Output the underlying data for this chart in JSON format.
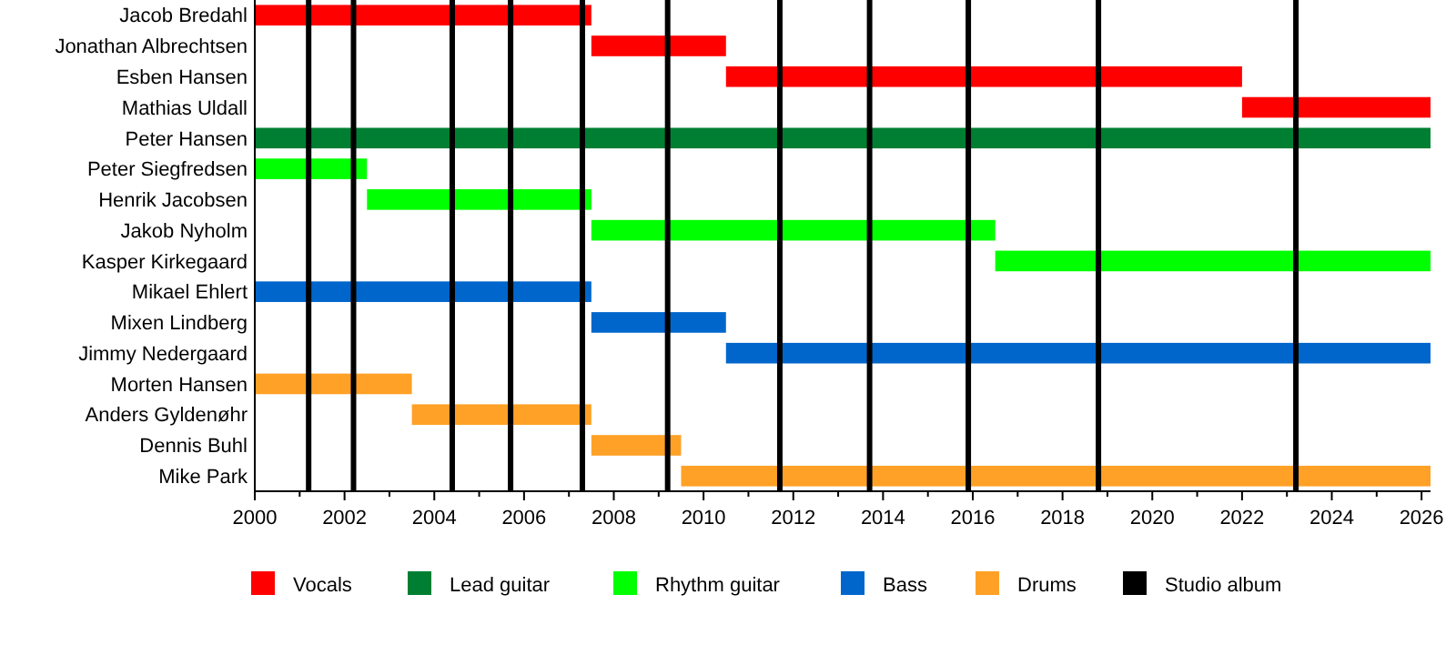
{
  "chart_data": {
    "type": "bar",
    "orientation": "horizontal",
    "categories": [
      "Jacob Bredahl",
      "Jonathan Albrechtsen",
      "Esben Hansen",
      "Mathias Uldall",
      "Peter Hansen",
      "Peter Siegfredsen",
      "Henrik Jacobsen",
      "Jakob Nyholm",
      "Kasper Kirkegaard",
      "Mikael Ehlert",
      "Mixen Lindberg",
      "Jimmy Nedergaard",
      "Morten Hansen",
      "Anders Gyldenøhr",
      "Dennis Buhl",
      "Mike Park"
    ],
    "series": [
      {
        "name": "Vocals",
        "color": "#ff0000",
        "base": [
          2000,
          2007.5,
          2010.5,
          2022,
          null,
          null,
          null,
          null,
          null,
          null,
          null,
          null,
          null,
          null,
          null,
          null
        ],
        "values": [
          7.5,
          3,
          11.5,
          4.2,
          null,
          null,
          null,
          null,
          null,
          null,
          null,
          null,
          null,
          null,
          null,
          null
        ]
      },
      {
        "name": "Lead guitar",
        "color": "#007f33",
        "base": [
          null,
          null,
          null,
          null,
          2000,
          null,
          null,
          null,
          null,
          null,
          null,
          null,
          null,
          null,
          null,
          null
        ],
        "values": [
          null,
          null,
          null,
          null,
          26.2,
          null,
          null,
          null,
          null,
          null,
          null,
          null,
          null,
          null,
          null,
          null
        ]
      },
      {
        "name": "Rhythm guitar",
        "color": "#00ff00",
        "base": [
          null,
          null,
          null,
          null,
          null,
          2000,
          2002.5,
          2007.5,
          2016.5,
          null,
          null,
          null,
          null,
          null,
          null,
          null
        ],
        "values": [
          null,
          null,
          null,
          null,
          null,
          2.5,
          5,
          9,
          9.7,
          null,
          null,
          null,
          null,
          null,
          null,
          null
        ]
      },
      {
        "name": "Bass",
        "color": "#0066cc",
        "base": [
          null,
          null,
          null,
          null,
          null,
          null,
          null,
          null,
          null,
          2000,
          2007.5,
          2010.5,
          null,
          null,
          null,
          null
        ],
        "values": [
          null,
          null,
          null,
          null,
          null,
          null,
          null,
          null,
          null,
          7.5,
          3,
          15.7,
          null,
          null,
          null,
          null
        ]
      },
      {
        "name": "Drums",
        "color": "#ffa126",
        "base": [
          null,
          null,
          null,
          null,
          null,
          null,
          null,
          null,
          null,
          null,
          null,
          null,
          2000,
          2003.5,
          2007.5,
          2009.5
        ],
        "values": [
          null,
          null,
          null,
          null,
          null,
          null,
          null,
          null,
          null,
          null,
          null,
          null,
          3.5,
          4,
          2,
          16.7
        ]
      }
    ],
    "xlim": [
      2000,
      2026.2
    ],
    "xticks": [
      2000,
      {
        "value": 2001,
        "label": null
      },
      2002,
      {
        "value": 2003,
        "label": null
      },
      2004,
      {
        "value": 2005,
        "label": null
      },
      2006,
      {
        "value": 2007,
        "label": null
      },
      2008,
      {
        "value": 2009,
        "label": null
      },
      2010,
      {
        "value": 2011,
        "label": null
      },
      2012,
      {
        "value": 2013,
        "label": null
      },
      2014,
      {
        "value": 2015,
        "label": null
      },
      2016,
      {
        "value": 2017,
        "label": null
      },
      2018,
      {
        "value": 2019,
        "label": null
      },
      2020,
      {
        "value": 2021,
        "label": null
      },
      2022,
      {
        "value": 2023,
        "label": null
      },
      2024,
      {
        "value": 2025,
        "label": null
      },
      2026
    ],
    "ref_lines": [
      {
        "axis": "x",
        "value": 2001.2,
        "label": "Studio album",
        "color": "#000000"
      },
      {
        "axis": "x",
        "value": 2002.2,
        "color": "#000000"
      },
      {
        "axis": "x",
        "value": 2004.4,
        "color": "#000000"
      },
      {
        "axis": "x",
        "value": 2005.7,
        "color": "#000000"
      },
      {
        "axis": "x",
        "value": 2007.3,
        "color": "#000000"
      },
      {
        "axis": "x",
        "value": 2009.2,
        "color": "#000000"
      },
      {
        "axis": "x",
        "value": 2011.7,
        "color": "#000000"
      },
      {
        "axis": "x",
        "value": 2013.7,
        "color": "#000000"
      },
      {
        "axis": "x",
        "value": 2015.9,
        "color": "#000000"
      },
      {
        "axis": "x",
        "value": 2018.8,
        "color": "#000000"
      },
      {
        "axis": "x",
        "value": 2023.2,
        "color": "#000000"
      }
    ],
    "grid": false,
    "legend": "bottom"
  }
}
